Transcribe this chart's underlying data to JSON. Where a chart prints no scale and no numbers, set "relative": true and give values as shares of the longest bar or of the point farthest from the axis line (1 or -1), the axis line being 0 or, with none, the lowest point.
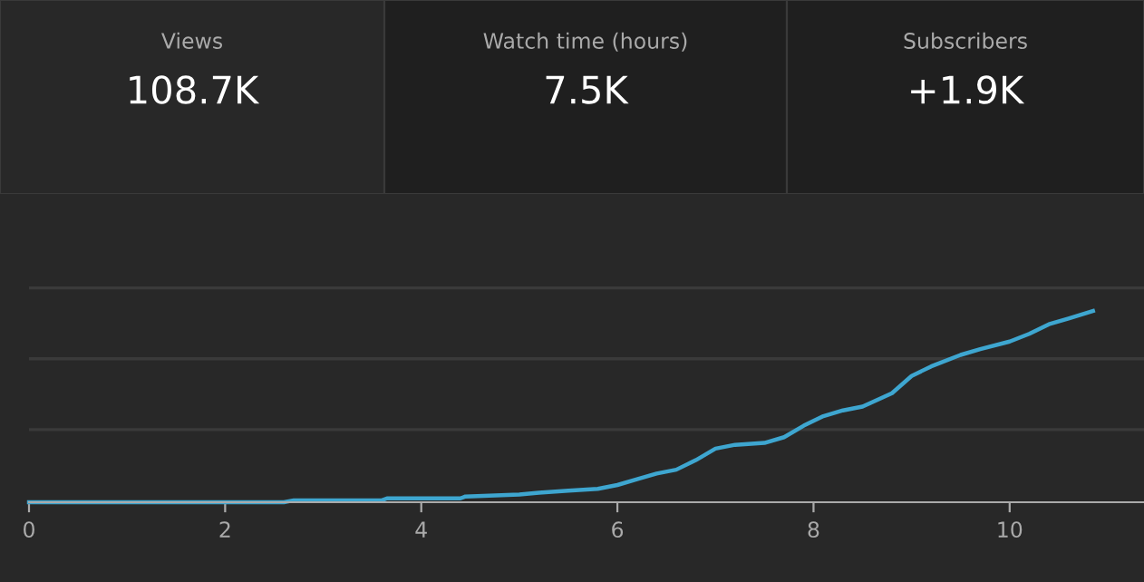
{
  "chart_data": [
    {
      "type": "other",
      "annotations": [
        "Views",
        "108.7K",
        "Watch time (hours)",
        "7.5K",
        "Subscribers",
        "+1.9K"
      ]
    },
    {
      "type": "line",
      "relative": true,
      "color": "#3ea6d0",
      "ref_lines": [
        {
          "axis": "y",
          "value": 0.38,
          "color": "#3a3a3a"
        },
        {
          "axis": "y",
          "value": 0.75,
          "color": "#3a3a3a"
        },
        {
          "axis": "y",
          "value": 1.12,
          "color": "#3a3a3a"
        }
      ],
      "x": [
        0,
        2.6,
        2.7,
        3.6,
        3.65,
        4.4,
        4.45,
        5.0,
        5.2,
        5.5,
        5.8,
        6.0,
        6.2,
        6.4,
        6.6,
        6.8,
        7.0,
        7.2,
        7.5,
        7.7,
        7.9,
        8.1,
        8.3,
        8.5,
        8.8,
        9.0,
        9.2,
        9.5,
        9.7,
        10.0,
        10.2,
        10.4,
        10.6,
        10.85
      ],
      "values": [
        0,
        0,
        0.01,
        0.01,
        0.02,
        0.02,
        0.03,
        0.04,
        0.05,
        0.06,
        0.07,
        0.09,
        0.12,
        0.15,
        0.17,
        0.22,
        0.28,
        0.3,
        0.31,
        0.34,
        0.4,
        0.45,
        0.48,
        0.5,
        0.57,
        0.66,
        0.71,
        0.77,
        0.8,
        0.84,
        0.88,
        0.93,
        0.96,
        1.0
      ],
      "xlim": [
        0,
        11.37
      ],
      "xticks": [
        0,
        2,
        4,
        6,
        8,
        10
      ]
    }
  ]
}
